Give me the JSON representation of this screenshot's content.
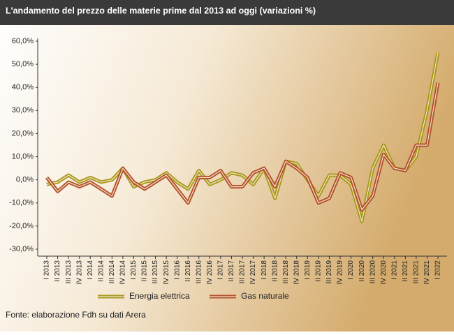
{
  "chart_data": {
    "type": "line",
    "title": "L'andamento del prezzo delle materie prime dal 2013 ad oggi (variazioni %)",
    "categories": [
      "I 2013",
      "II 2013",
      "III 2013",
      "IV 2013",
      "I 2014",
      "II 2014",
      "III 2014",
      "IV 2014",
      "I 2015",
      "II 2015",
      "III 2015",
      "IV 2015",
      "I 2016",
      "II 2016",
      "III 2016",
      "IV 2016",
      "I 2017",
      "II 2017",
      "III 2017",
      "IV 2017",
      "I 2018",
      "II 2018",
      "III 2018",
      "IV 2018",
      "I 2019",
      "II 2019",
      "III 2019",
      "IV 2019",
      "I 2020",
      "II 2020",
      "III 2020",
      "IV 2020",
      "I 2021",
      "II 2021",
      "III 2021",
      "IV 2021",
      "I 2022"
    ],
    "series": [
      {
        "name": "Energia elettrica",
        "color": "#a8981c",
        "values": [
          -2,
          -1,
          2,
          -1,
          1,
          -1,
          0,
          5,
          -3,
          -1,
          0,
          3,
          -1,
          -4,
          4,
          -2,
          0,
          3,
          2,
          -2,
          5,
          -8,
          8,
          7,
          0,
          -7,
          2,
          2,
          -2,
          -18,
          5,
          15,
          5,
          4,
          10,
          30,
          55
        ]
      },
      {
        "name": "Gas naturale",
        "color": "#b4502c",
        "values": [
          1,
          -5,
          -1,
          -3,
          -1,
          -4,
          -7,
          5,
          -1,
          -4,
          -1,
          2,
          -4,
          -10,
          1,
          1,
          4,
          -3,
          -3,
          3,
          5,
          -3,
          8,
          5,
          1,
          -10,
          -8,
          3,
          1,
          -13,
          -7,
          11,
          5,
          4,
          15,
          15,
          42
        ]
      }
    ],
    "ylim": [
      -30,
      60
    ],
    "yticks": [
      {
        "value": -30,
        "label": "-30,0%"
      },
      {
        "value": -20,
        "label": "-20,0%"
      },
      {
        "value": -10,
        "label": "-10,0%"
      },
      {
        "value": 0,
        "label": "0,0%"
      },
      {
        "value": 10,
        "label": "10,0%"
      },
      {
        "value": 20,
        "label": "20,0%"
      },
      {
        "value": 30,
        "label": "30,0%"
      },
      {
        "value": 40,
        "label": "40,0%"
      },
      {
        "value": 50,
        "label": "50,0%"
      },
      {
        "value": 60,
        "label": "60,0%"
      }
    ],
    "legend": "bottom",
    "source": "Fonte: elaborazione Fdh su dati Arera"
  }
}
